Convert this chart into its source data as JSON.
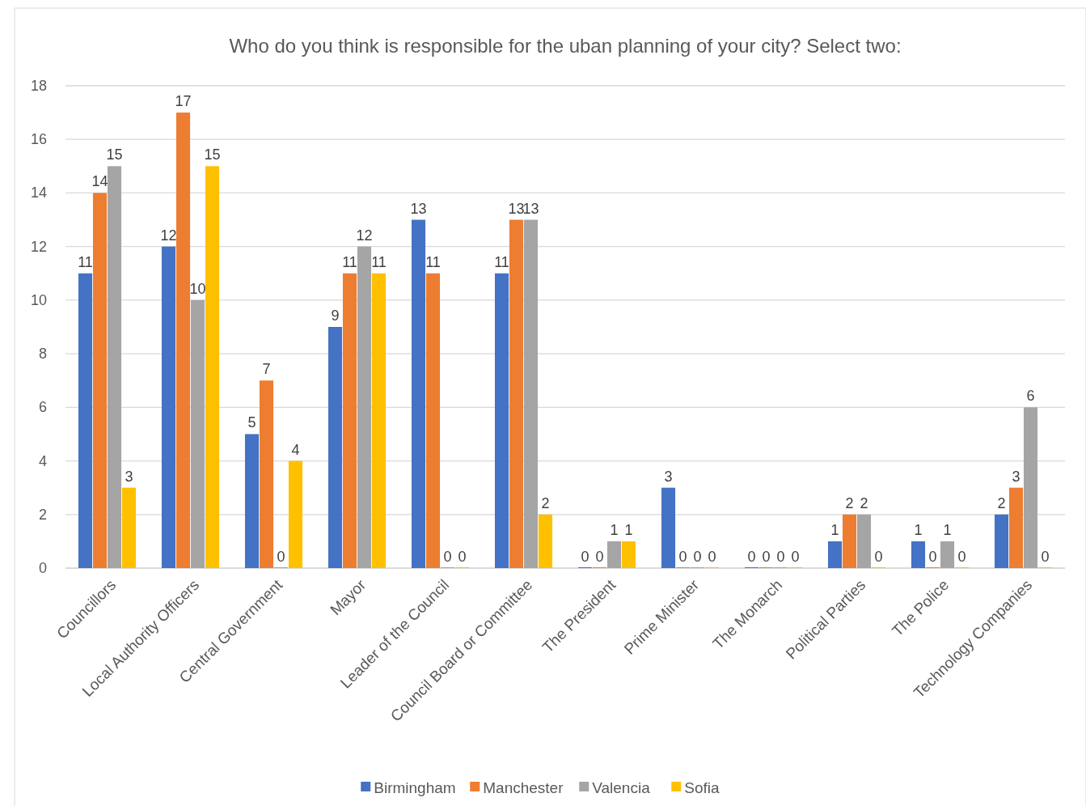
{
  "chart_data": {
    "type": "bar",
    "title": "Who do you think is responsible for the uban planning of your city? Select two:",
    "categories": [
      "Councillors",
      "Local Authority Officers",
      "Central Government",
      "Mayor",
      "Leader of the Council",
      "Council Board or Committee",
      "The President",
      "Prime Minister",
      "The Monarch",
      "Political Parties",
      "The Police",
      "Technology Companies"
    ],
    "series": [
      {
        "name": "Birmingham",
        "color": "#4472c4",
        "values": [
          11,
          12,
          5,
          9,
          13,
          11,
          0,
          3,
          0,
          1,
          1,
          2
        ]
      },
      {
        "name": "Manchester",
        "color": "#ed7d31",
        "values": [
          14,
          17,
          7,
          11,
          11,
          13,
          0,
          0,
          0,
          2,
          0,
          3
        ]
      },
      {
        "name": "Valencia",
        "color": "#a5a5a5",
        "values": [
          15,
          10,
          0,
          12,
          0,
          13,
          1,
          0,
          0,
          2,
          1,
          6
        ]
      },
      {
        "name": "Sofia",
        "color": "#ffc000",
        "values": [
          3,
          15,
          4,
          11,
          0,
          2,
          1,
          0,
          0,
          0,
          0,
          0
        ]
      }
    ],
    "ylim": [
      0,
      18
    ],
    "yticks": [
      0,
      2,
      4,
      6,
      8,
      10,
      12,
      14,
      16,
      18
    ],
    "grid": "y",
    "legend": "bottom",
    "data_labels": true
  }
}
